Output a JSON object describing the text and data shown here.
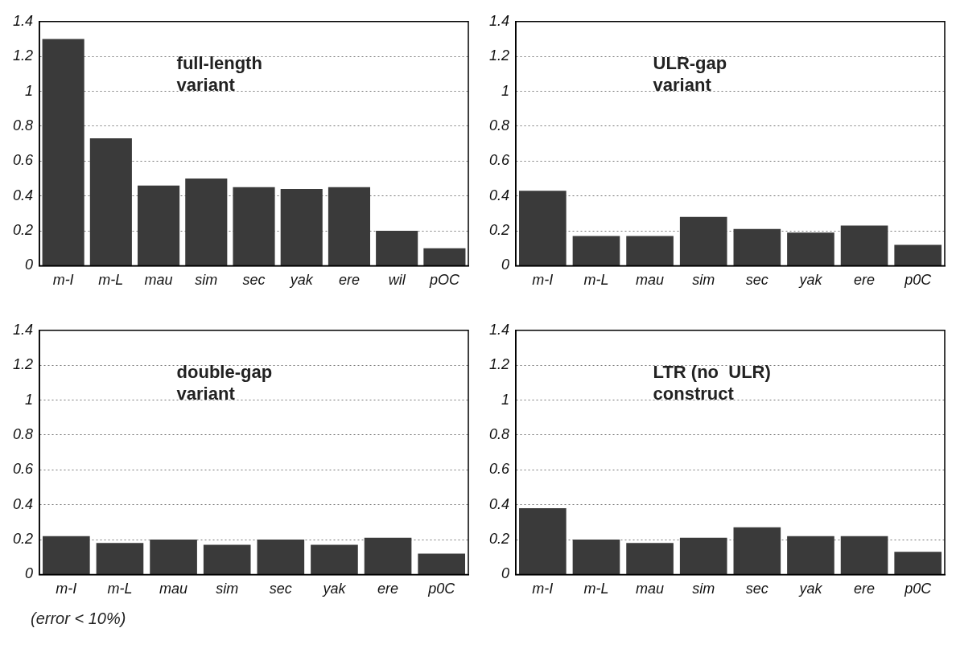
{
  "chart_data": [
    {
      "type": "bar",
      "title": "full-length variant",
      "categories": [
        "m-I",
        "m-L",
        "mau",
        "sim",
        "sec",
        "yak",
        "ere",
        "wil",
        "pOC"
      ],
      "values": [
        1.3,
        0.73,
        0.46,
        0.5,
        0.45,
        0.44,
        0.45,
        0.2,
        0.1
      ],
      "color": "#3a3a3a",
      "ylim": [
        0,
        1.4
      ],
      "yticks": [
        0,
        0.2,
        0.4,
        0.6,
        0.8,
        1,
        1.2,
        1.4
      ],
      "grid": "y",
      "legend": false
    },
    {
      "type": "bar",
      "title": "ULR-gap variant",
      "categories": [
        "m-I",
        "m-L",
        "mau",
        "sim",
        "sec",
        "yak",
        "ere",
        "p0C"
      ],
      "values": [
        0.43,
        0.17,
        0.17,
        0.28,
        0.21,
        0.19,
        0.23,
        0.12
      ],
      "color": "#3a3a3a",
      "ylim": [
        0,
        1.4
      ],
      "yticks": [
        0,
        0.2,
        0.4,
        0.6,
        0.8,
        1,
        1.2,
        1.4
      ],
      "grid": "y",
      "legend": false
    },
    {
      "type": "bar",
      "title": "double-gap variant",
      "categories": [
        "m-I",
        "m-L",
        "mau",
        "sim",
        "sec",
        "yak",
        "ere",
        "p0C"
      ],
      "values": [
        0.22,
        0.18,
        0.2,
        0.17,
        0.2,
        0.17,
        0.21,
        0.12
      ],
      "color": "#3a3a3a",
      "ylim": [
        0,
        1.4
      ],
      "yticks": [
        0,
        0.2,
        0.4,
        0.6,
        0.8,
        1,
        1.2,
        1.4
      ],
      "grid": "y",
      "legend": false,
      "annotations": [
        "(error < 10%)"
      ]
    },
    {
      "type": "bar",
      "title": "LTR (no  ULR) construct",
      "categories": [
        "m-I",
        "m-L",
        "mau",
        "sim",
        "sec",
        "yak",
        "ere",
        "p0C"
      ],
      "values": [
        0.38,
        0.2,
        0.18,
        0.21,
        0.27,
        0.22,
        0.22,
        0.13
      ],
      "color": "#3a3a3a",
      "ylim": [
        0,
        1.4
      ],
      "yticks": [
        0,
        0.2,
        0.4,
        0.6,
        0.8,
        1,
        1.2,
        1.4
      ],
      "grid": "y",
      "legend": false
    }
  ]
}
